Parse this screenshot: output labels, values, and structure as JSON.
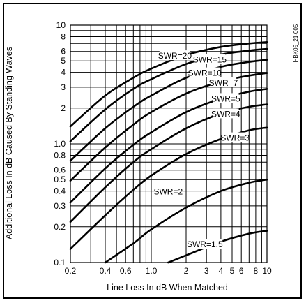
{
  "figure_id": "HBK05_21-005",
  "chart_data": {
    "type": "line",
    "xscale": "log",
    "yscale": "log",
    "xlim": [
      0.2,
      10
    ],
    "ylim": [
      0.1,
      10
    ],
    "xlabel": "Line Loss In dB When Matched",
    "ylabel": "Additional Loss In dB Caused By Standing Waves",
    "x_tick_labels": [
      {
        "value": 0.2,
        "label": "0.2"
      },
      {
        "value": 0.4,
        "label": "0.4"
      },
      {
        "value": 0.6,
        "label": "0.6"
      },
      {
        "value": 1.0,
        "label": "1.0"
      },
      {
        "value": 2,
        "label": "2"
      },
      {
        "value": 3,
        "label": "3"
      },
      {
        "value": 4,
        "label": "4"
      },
      {
        "value": 5,
        "label": "5"
      },
      {
        "value": 6,
        "label": "6"
      },
      {
        "value": 8,
        "label": "8"
      },
      {
        "value": 10,
        "label": "10"
      }
    ],
    "y_tick_labels": [
      {
        "value": 0.1,
        "label": "0.1"
      },
      {
        "value": 0.2,
        "label": "0.2"
      },
      {
        "value": 0.3,
        "label": "0.3"
      },
      {
        "value": 0.4,
        "label": "0.4"
      },
      {
        "value": 0.5,
        "label": "0.5"
      },
      {
        "value": 0.6,
        "label": "0.6"
      },
      {
        "value": 0.8,
        "label": "0.8"
      },
      {
        "value": 1.0,
        "label": "1.0"
      },
      {
        "value": 2,
        "label": "2"
      },
      {
        "value": 3,
        "label": "3"
      },
      {
        "value": 4,
        "label": "4"
      },
      {
        "value": 5,
        "label": "5"
      },
      {
        "value": 6,
        "label": "6"
      },
      {
        "value": 8,
        "label": "8"
      },
      {
        "value": 10,
        "label": "10"
      }
    ],
    "x_gridlines": [
      0.2,
      0.3,
      0.4,
      0.5,
      0.6,
      0.7,
      0.8,
      0.9,
      1,
      2,
      3,
      4,
      5,
      6,
      7,
      8,
      9,
      10
    ],
    "y_gridlines": [
      0.1,
      0.2,
      0.3,
      0.4,
      0.5,
      0.6,
      0.7,
      0.8,
      0.9,
      1,
      2,
      3,
      4,
      5,
      6,
      7,
      8,
      9,
      10
    ],
    "grid": true,
    "series": [
      {
        "name": "SWR=20",
        "x": [
          0.2,
          0.4,
          0.7,
          1.0,
          2.0,
          4.0,
          7.0,
          10.0
        ],
        "y": [
          1.4,
          2.55,
          3.6,
          4.3,
          5.6,
          6.55,
          7.0,
          7.2
        ]
      },
      {
        "name": "SWR=15",
        "x": [
          0.2,
          0.4,
          0.7,
          1.0,
          2.0,
          4.0,
          7.0,
          10.0
        ],
        "y": [
          1.05,
          1.95,
          2.9,
          3.5,
          4.7,
          5.65,
          6.1,
          6.3
        ]
      },
      {
        "name": "SWR=10",
        "x": [
          0.2,
          0.4,
          0.7,
          1.0,
          2.0,
          4.0,
          7.0,
          10.0
        ],
        "y": [
          0.72,
          1.35,
          2.05,
          2.55,
          3.6,
          4.45,
          4.9,
          5.1
        ]
      },
      {
        "name": "SWR=7",
        "x": [
          0.2,
          0.4,
          0.7,
          1.0,
          2.0,
          4.0,
          7.0,
          10.0
        ],
        "y": [
          0.49,
          0.93,
          1.45,
          1.85,
          2.65,
          3.35,
          3.75,
          3.95
        ]
      },
      {
        "name": "SWR=5",
        "x": [
          0.2,
          0.4,
          0.7,
          1.0,
          2.0,
          4.0,
          7.0,
          10.0
        ],
        "y": [
          0.32,
          0.62,
          0.98,
          1.25,
          1.85,
          2.4,
          2.75,
          2.9
        ]
      },
      {
        "name": "SWR=4",
        "x": [
          0.2,
          0.4,
          0.7,
          1.0,
          2.0,
          4.0,
          7.0,
          10.0
        ],
        "y": [
          0.22,
          0.43,
          0.7,
          0.9,
          1.35,
          1.8,
          2.05,
          2.15
        ]
      },
      {
        "name": "SWR=3",
        "x": [
          0.2,
          0.4,
          0.7,
          1.0,
          2.0,
          4.0,
          7.0,
          10.0
        ],
        "y": [
          0.13,
          0.25,
          0.41,
          0.54,
          0.82,
          1.1,
          1.3,
          1.37
        ]
      },
      {
        "name": "SWR=2",
        "x": [
          0.4,
          0.7,
          1.0,
          2.0,
          4.0,
          7.0,
          10.0
        ],
        "y": [
          0.1,
          0.145,
          0.19,
          0.29,
          0.4,
          0.47,
          0.5
        ]
      },
      {
        "name": "SWR=1.5",
        "x": [
          1.4,
          2.0,
          4.0,
          7.0,
          10.0
        ],
        "y": [
          0.1,
          0.115,
          0.15,
          0.175,
          0.185
        ]
      }
    ],
    "curve_labels": [
      {
        "text": "SWR=20",
        "x": 1.6,
        "y": 5.5
      },
      {
        "text": "SWR=15",
        "x": 3.2,
        "y": 5.1
      },
      {
        "text": "SWR=10",
        "x": 2.9,
        "y": 3.95
      },
      {
        "text": "SWR=7",
        "x": 4.2,
        "y": 3.25
      },
      {
        "text": "SWR=5",
        "x": 4.4,
        "y": 2.4
      },
      {
        "text": "SWR=4",
        "x": 4.4,
        "y": 1.78
      },
      {
        "text": "SWR=3",
        "x": 5.3,
        "y": 1.12
      },
      {
        "text": "SWR=2",
        "x": 1.4,
        "y": 0.395
      },
      {
        "text": "SWR=1.5",
        "x": 2.9,
        "y": 0.142
      }
    ]
  }
}
